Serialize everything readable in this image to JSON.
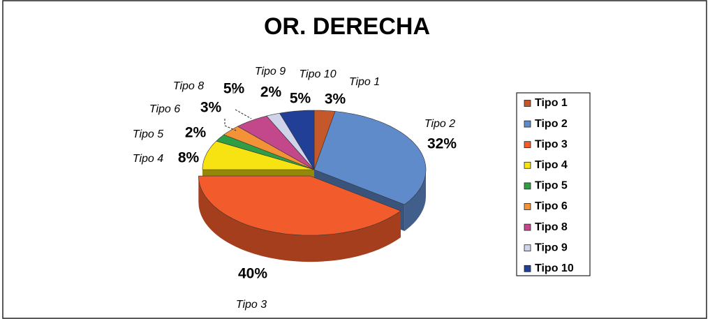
{
  "chart_data": {
    "type": "pie3d",
    "title": "OR. DERECHA",
    "categories": [
      "Tipo 1",
      "Tipo 2",
      "Tipo 3",
      "Tipo 4",
      "Tipo 5",
      "Tipo 6",
      "Tipo 8",
      "Tipo 9",
      "Tipo 10"
    ],
    "values": [
      3,
      32,
      40,
      8,
      2,
      3,
      5,
      2,
      5
    ],
    "value_labels": [
      "3%",
      "32%",
      "40%",
      "8%",
      "2%",
      "3%",
      "5%",
      "2%",
      "5%"
    ],
    "colors": [
      "#c4582a",
      "#5f8bcb",
      "#f25b2b",
      "#f7e312",
      "#2f9e44",
      "#f39236",
      "#c3478b",
      "#d0d4ea",
      "#213f97"
    ],
    "exploded": [
      "Tipo 3"
    ],
    "legend": "right"
  }
}
